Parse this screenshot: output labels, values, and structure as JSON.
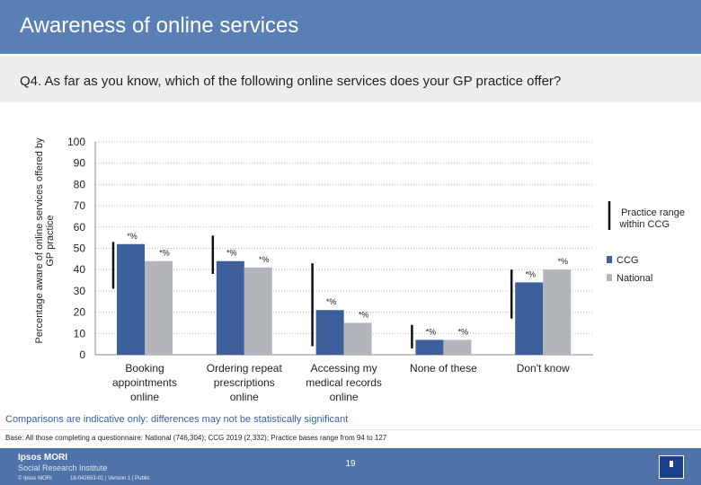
{
  "header": {
    "title": "Awareness of online services"
  },
  "question": "Q4. As far as you know, which of the following online services does your GP practice offer?",
  "footer": {
    "note": "Comparisons are indicative only: differences may not be statistically significant",
    "base": "Base: All those completing a questionnaire: National (746,304); CCG 2019 (2,332); Practice bases range from 94 to 127",
    "logo_line1": "Ipsos MORI",
    "logo_line2": "Social Research Institute",
    "page_number": "19",
    "copyright": "© Ipsos MORI",
    "job": "18-042653-01 | Version 1 | Public"
  },
  "chart_data": {
    "type": "bar",
    "ylabel": "Percentage aware of online services offered by GP practice",
    "ylim": [
      0,
      100
    ],
    "yticks": [
      0,
      10,
      20,
      30,
      40,
      50,
      60,
      70,
      80,
      90,
      100
    ],
    "categories": [
      [
        "Booking",
        "appointments",
        "online"
      ],
      [
        "Ordering repeat",
        "prescriptions",
        "online"
      ],
      [
        "Accessing my",
        "medical records",
        "online"
      ],
      [
        "None of these"
      ],
      [
        "Don't know"
      ]
    ],
    "series": [
      {
        "name": "CCG",
        "color": "#3d5f9c",
        "values": [
          52,
          44,
          21,
          7,
          34
        ],
        "labels": [
          "*%",
          "*%",
          "*%",
          "*%",
          "*%"
        ]
      },
      {
        "name": "National",
        "color": "#b2b5ba",
        "values": [
          44,
          41,
          15,
          7,
          40
        ],
        "labels": [
          "*%",
          "*%",
          "*%",
          "*%",
          "*%"
        ]
      }
    ],
    "practice_range": [
      [
        53,
        31
      ],
      [
        56,
        38
      ],
      [
        43,
        4
      ],
      [
        14,
        3
      ],
      [
        40,
        17
      ]
    ],
    "legend": [
      {
        "label": "Practice range within CCG",
        "kind": "range"
      },
      {
        "label": "CCG",
        "kind": "swatch",
        "color": "#3d5f9c"
      },
      {
        "label": "National",
        "kind": "swatch",
        "color": "#b2b5ba"
      }
    ],
    "legend_position": "right",
    "grid": true
  }
}
